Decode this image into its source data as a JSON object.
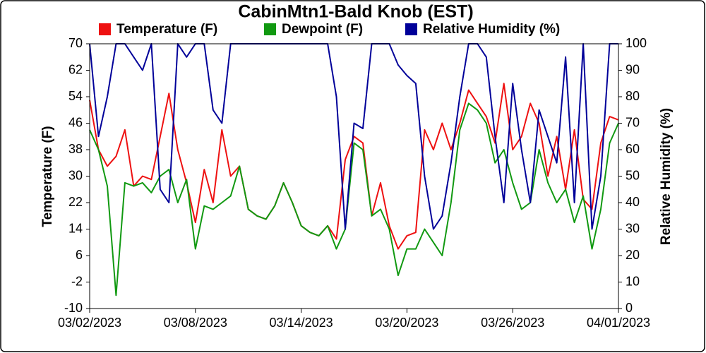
{
  "chart_data": {
    "type": "line",
    "title": "CabinMtn1-Bald Knob (EST)",
    "y_label": "Temperature (F)",
    "y2_label": "Relative Humidity (%)",
    "x": [
      "2023-03-02T00:00",
      "2023-03-02T12:00",
      "2023-03-03T00:00",
      "2023-03-03T12:00",
      "2023-03-04T00:00",
      "2023-03-04T12:00",
      "2023-03-05T00:00",
      "2023-03-05T12:00",
      "2023-03-06T00:00",
      "2023-03-06T12:00",
      "2023-03-07T00:00",
      "2023-03-07T12:00",
      "2023-03-08T00:00",
      "2023-03-08T12:00",
      "2023-03-09T00:00",
      "2023-03-09T12:00",
      "2023-03-10T00:00",
      "2023-03-10T12:00",
      "2023-03-11T00:00",
      "2023-03-11T12:00",
      "2023-03-12T00:00",
      "2023-03-12T12:00",
      "2023-03-13T00:00",
      "2023-03-13T12:00",
      "2023-03-14T00:00",
      "2023-03-14T12:00",
      "2023-03-15T00:00",
      "2023-03-15T12:00",
      "2023-03-16T00:00",
      "2023-03-16T12:00",
      "2023-03-17T00:00",
      "2023-03-17T12:00",
      "2023-03-18T00:00",
      "2023-03-18T12:00",
      "2023-03-19T00:00",
      "2023-03-19T12:00",
      "2023-03-20T00:00",
      "2023-03-20T12:00",
      "2023-03-21T00:00",
      "2023-03-21T12:00",
      "2023-03-22T00:00",
      "2023-03-22T12:00",
      "2023-03-23T00:00",
      "2023-03-23T12:00",
      "2023-03-24T00:00",
      "2023-03-24T12:00",
      "2023-03-25T00:00",
      "2023-03-25T12:00",
      "2023-03-26T00:00",
      "2023-03-26T12:00",
      "2023-03-27T00:00",
      "2023-03-27T12:00",
      "2023-03-28T00:00",
      "2023-03-28T12:00",
      "2023-03-29T00:00",
      "2023-03-29T12:00",
      "2023-03-30T00:00",
      "2023-03-30T12:00",
      "2023-03-31T00:00",
      "2023-03-31T12:00",
      "2023-04-01T00:00"
    ],
    "series": [
      {
        "name": "Temperature (F)",
        "color": "#ee1111",
        "values": [
          53,
          38,
          33,
          36,
          44,
          27,
          30,
          29,
          42,
          55,
          38,
          28,
          16,
          32,
          22,
          44,
          30,
          33,
          20,
          18,
          17,
          21,
          28,
          22,
          15,
          13,
          12,
          15,
          11,
          35,
          42,
          40,
          18,
          28,
          15,
          8,
          12,
          13,
          44,
          38,
          46,
          38,
          46,
          56,
          52,
          48,
          40,
          58,
          38,
          42,
          52,
          46,
          30,
          42,
          26,
          44,
          23,
          20,
          40,
          48,
          47
        ]
      },
      {
        "name": "Dewpoint (F)",
        "color": "#119911",
        "values": [
          44,
          38,
          27,
          -6,
          28,
          27,
          28,
          25,
          30,
          32,
          22,
          29,
          8,
          21,
          20,
          22,
          24,
          33,
          20,
          18,
          17,
          21,
          28,
          22,
          15,
          13,
          12,
          15,
          8,
          14,
          40,
          38,
          18,
          20,
          14,
          0,
          8,
          8,
          14,
          10,
          6,
          22,
          44,
          52,
          50,
          46,
          34,
          38,
          28,
          20,
          22,
          38,
          28,
          22,
          26,
          16,
          24,
          8,
          20,
          40,
          46
        ]
      },
      {
        "name": "Relative Humidity (%)",
        "color": "#000099",
        "axis": "y2",
        "values": [
          100,
          65,
          80,
          100,
          100,
          95,
          90,
          100,
          45,
          40,
          100,
          95,
          100,
          100,
          75,
          70,
          100,
          100,
          100,
          100,
          100,
          100,
          100,
          100,
          100,
          100,
          100,
          100,
          80,
          30,
          70,
          68,
          100,
          100,
          100,
          92,
          88,
          85,
          50,
          30,
          35,
          55,
          80,
          100,
          100,
          95,
          65,
          40,
          85,
          60,
          40,
          75,
          65,
          55,
          95,
          40,
          100,
          30,
          50,
          100,
          100
        ]
      }
    ],
    "xlim": [
      "2023-03-02T00:00",
      "2023-04-01T00:00"
    ],
    "xticks": [
      {
        "value": "2023-03-02T00:00",
        "label": "03/02/2023"
      },
      {
        "value": "2023-03-08T00:00",
        "label": "03/08/2023"
      },
      {
        "value": "2023-03-14T00:00",
        "label": "03/14/2023"
      },
      {
        "value": "2023-03-20T00:00",
        "label": "03/20/2023"
      },
      {
        "value": "2023-03-26T00:00",
        "label": "03/26/2023"
      },
      {
        "value": "2023-04-01T00:00",
        "label": "04/01/2023"
      }
    ],
    "ylim": [
      -10,
      70
    ],
    "yticks": [
      -10,
      -2,
      6,
      14,
      22,
      30,
      38,
      46,
      54,
      62,
      70
    ],
    "y2lim": [
      0,
      100
    ],
    "y2ticks": [
      0,
      10,
      20,
      30,
      40,
      50,
      60,
      70,
      80,
      90,
      100
    ],
    "legend": "top"
  }
}
